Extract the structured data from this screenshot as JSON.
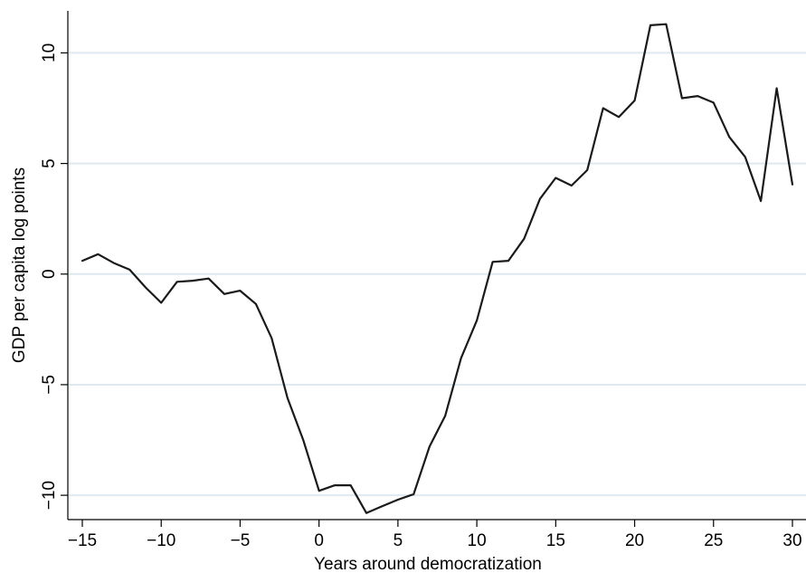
{
  "chart_data": {
    "type": "line",
    "title": "",
    "xlabel": "Years around democratization",
    "ylabel": "GDP per capita log points",
    "xlim": [
      -15,
      30
    ],
    "ylim": [
      -11.1,
      11.9
    ],
    "xticks": [
      -15,
      -10,
      -5,
      0,
      5,
      10,
      15,
      20,
      25,
      30
    ],
    "yticks": [
      -10,
      -5,
      0,
      5,
      10
    ],
    "xtick_labels": [
      "−15",
      "−10",
      "−5",
      "0",
      "5",
      "10",
      "15",
      "20",
      "25",
      "30"
    ],
    "ytick_labels": [
      "−10",
      "−5",
      "0",
      "5",
      "10"
    ],
    "grid": "horizontal",
    "grid_color": "#dfe9f0",
    "line_color": "#1a1a1a",
    "x": [
      -15,
      -14,
      -13,
      -12,
      -11,
      -10,
      -9,
      -8,
      -7,
      -6,
      -5,
      -4,
      -3,
      -2,
      -1,
      0,
      1,
      2,
      3,
      4,
      5,
      6,
      7,
      8,
      9,
      10,
      11,
      12,
      13,
      14,
      15,
      16,
      17,
      18,
      19,
      20,
      21,
      22,
      23,
      24,
      25,
      26,
      27,
      28,
      29,
      30
    ],
    "y": [
      0.6,
      0.9,
      0.5,
      0.2,
      -0.6,
      -1.3,
      -0.35,
      -0.3,
      -0.2,
      -0.9,
      -0.75,
      -1.35,
      -2.9,
      -5.6,
      -7.5,
      -9.8,
      -9.55,
      -9.55,
      -10.8,
      -10.5,
      -10.2,
      -9.95,
      -7.8,
      -6.4,
      -3.8,
      -2.1,
      0.55,
      0.6,
      1.6,
      3.4,
      4.35,
      4.0,
      4.7,
      7.5,
      7.1,
      7.85,
      11.25,
      11.3,
      7.95,
      8.05,
      7.75,
      6.2,
      5.3,
      3.3,
      8.4,
      4.05
    ]
  }
}
